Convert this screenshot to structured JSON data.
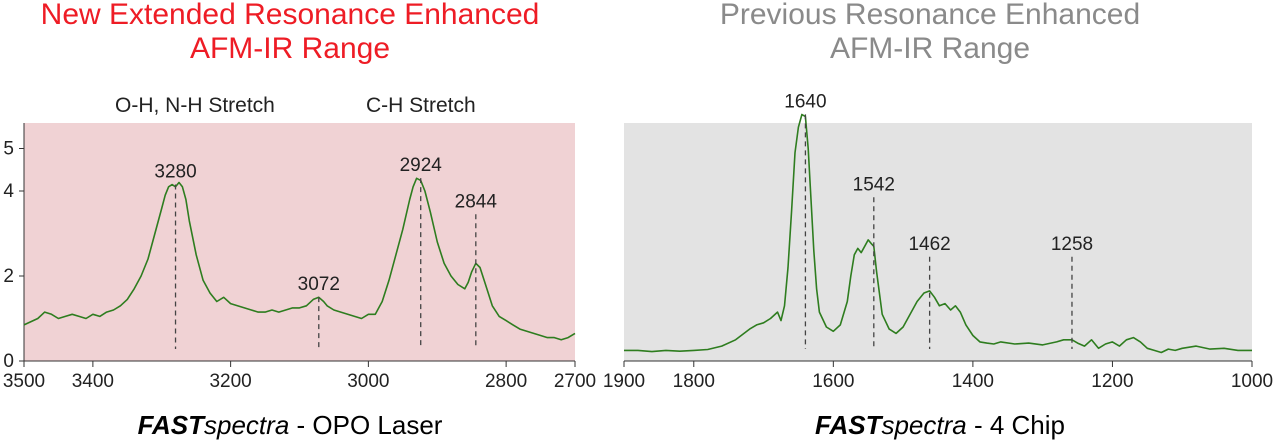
{
  "titles": {
    "left": [
      "New Extended Resonance Enhanced",
      "AFM-IR Range"
    ],
    "right": [
      "Previous Resonance Enhanced",
      "AFM-IR Range"
    ]
  },
  "band_labels": {
    "oh_nh": "O-H, N-H Stretch",
    "ch": "C-H Stretch"
  },
  "captions": {
    "left": {
      "bold": "FAST",
      "italic": "spectra",
      "rest": " - OPO Laser"
    },
    "right": {
      "bold": "FAST",
      "italic": "spectra",
      "rest": " - 4 Chip"
    }
  },
  "colors": {
    "line": "#2e7d1f",
    "left_bg": "#f0d2d4",
    "right_bg": "#e3e3e3",
    "left_title": "#ee1c25",
    "right_title": "#8a8a8a"
  },
  "chart_data": [
    {
      "type": "line",
      "xlim": [
        3500,
        2700
      ],
      "ylim": [
        0,
        5.6
      ],
      "xticks": [
        3500,
        3400,
        3200,
        3000,
        2800,
        2700
      ],
      "yticks": [
        0,
        2,
        4,
        5
      ],
      "series": [
        {
          "x": [
            3500,
            3480,
            3470,
            3460,
            3450,
            3440,
            3430,
            3420,
            3410,
            3400,
            3390,
            3380,
            3370,
            3360,
            3350,
            3340,
            3330,
            3320,
            3310,
            3300,
            3295,
            3290,
            3285,
            3280,
            3275,
            3270,
            3265,
            3260,
            3250,
            3240,
            3230,
            3220,
            3210,
            3200,
            3190,
            3180,
            3170,
            3160,
            3150,
            3140,
            3130,
            3120,
            3110,
            3100,
            3090,
            3080,
            3072,
            3065,
            3060,
            3050,
            3040,
            3030,
            3020,
            3010,
            3000,
            2990,
            2980,
            2970,
            2960,
            2950,
            2940,
            2935,
            2930,
            2924,
            2918,
            2910,
            2900,
            2890,
            2880,
            2870,
            2860,
            2855,
            2850,
            2844,
            2838,
            2830,
            2820,
            2810,
            2800,
            2790,
            2780,
            2770,
            2760,
            2750,
            2740,
            2730,
            2720,
            2710,
            2700
          ],
          "y": [
            0.85,
            1.0,
            1.15,
            1.1,
            1.0,
            1.05,
            1.1,
            1.05,
            1.0,
            1.1,
            1.05,
            1.15,
            1.2,
            1.3,
            1.45,
            1.7,
            2.0,
            2.4,
            3.0,
            3.6,
            3.9,
            4.1,
            4.15,
            4.1,
            4.2,
            4.1,
            3.8,
            3.3,
            2.5,
            1.9,
            1.6,
            1.4,
            1.5,
            1.35,
            1.3,
            1.25,
            1.2,
            1.15,
            1.15,
            1.2,
            1.15,
            1.2,
            1.25,
            1.25,
            1.3,
            1.45,
            1.5,
            1.4,
            1.3,
            1.2,
            1.15,
            1.1,
            1.05,
            1.0,
            1.1,
            1.1,
            1.4,
            1.9,
            2.5,
            3.1,
            3.8,
            4.1,
            4.3,
            4.25,
            4.0,
            3.5,
            2.8,
            2.3,
            2.0,
            1.8,
            1.7,
            1.85,
            2.1,
            2.3,
            2.2,
            1.8,
            1.3,
            1.05,
            0.95,
            0.85,
            0.75,
            0.7,
            0.65,
            0.6,
            0.55,
            0.55,
            0.5,
            0.55,
            0.65
          ]
        }
      ],
      "peaks": [
        {
          "x": 3280,
          "label": "3280",
          "y": 4.2
        },
        {
          "x": 3072,
          "label": "3072",
          "y": 1.55
        },
        {
          "x": 2924,
          "label": "2924",
          "y": 4.35
        },
        {
          "x": 2844,
          "label": "2844",
          "y": 3.5
        }
      ]
    },
    {
      "type": "line",
      "xlim": [
        1900,
        1000
      ],
      "ylim": [
        0,
        5.6
      ],
      "xticks": [
        1900,
        1800,
        1600,
        1400,
        1200,
        1000
      ],
      "yticks": [],
      "series": [
        {
          "x": [
            1900,
            1880,
            1860,
            1840,
            1820,
            1800,
            1780,
            1760,
            1740,
            1720,
            1710,
            1700,
            1690,
            1680,
            1675,
            1670,
            1665,
            1660,
            1655,
            1650,
            1645,
            1640,
            1636,
            1632,
            1628,
            1624,
            1620,
            1610,
            1600,
            1590,
            1580,
            1575,
            1570,
            1565,
            1560,
            1555,
            1550,
            1545,
            1542,
            1538,
            1534,
            1530,
            1520,
            1510,
            1500,
            1490,
            1480,
            1470,
            1462,
            1455,
            1448,
            1440,
            1432,
            1425,
            1418,
            1410,
            1400,
            1390,
            1380,
            1370,
            1360,
            1340,
            1320,
            1300,
            1280,
            1270,
            1258,
            1250,
            1240,
            1230,
            1220,
            1210,
            1200,
            1190,
            1180,
            1170,
            1160,
            1150,
            1140,
            1130,
            1120,
            1110,
            1100,
            1080,
            1060,
            1040,
            1020,
            1000
          ],
          "y": [
            0.25,
            0.25,
            0.22,
            0.25,
            0.23,
            0.25,
            0.27,
            0.35,
            0.5,
            0.75,
            0.85,
            0.9,
            1.0,
            1.15,
            0.95,
            1.3,
            2.2,
            3.5,
            4.9,
            5.5,
            5.8,
            5.75,
            5.0,
            3.8,
            2.6,
            1.7,
            1.15,
            0.8,
            0.7,
            0.85,
            1.4,
            2.0,
            2.5,
            2.65,
            2.55,
            2.7,
            2.85,
            2.75,
            2.7,
            2.1,
            1.6,
            1.1,
            0.75,
            0.65,
            0.8,
            1.1,
            1.4,
            1.6,
            1.65,
            1.5,
            1.3,
            1.35,
            1.2,
            1.3,
            1.15,
            0.85,
            0.6,
            0.45,
            0.42,
            0.4,
            0.45,
            0.4,
            0.42,
            0.38,
            0.45,
            0.5,
            0.5,
            0.42,
            0.35,
            0.5,
            0.3,
            0.4,
            0.45,
            0.35,
            0.5,
            0.55,
            0.45,
            0.3,
            0.25,
            0.2,
            0.28,
            0.25,
            0.3,
            0.35,
            0.28,
            0.3,
            0.25,
            0.25
          ]
        }
      ],
      "peaks": [
        {
          "x": 1640,
          "label": "1640",
          "y": 5.85
        },
        {
          "x": 1542,
          "label": "1542",
          "y": 3.9
        },
        {
          "x": 1462,
          "label": "1462",
          "y": 2.5
        },
        {
          "x": 1258,
          "label": "1258",
          "y": 2.5
        }
      ]
    }
  ]
}
